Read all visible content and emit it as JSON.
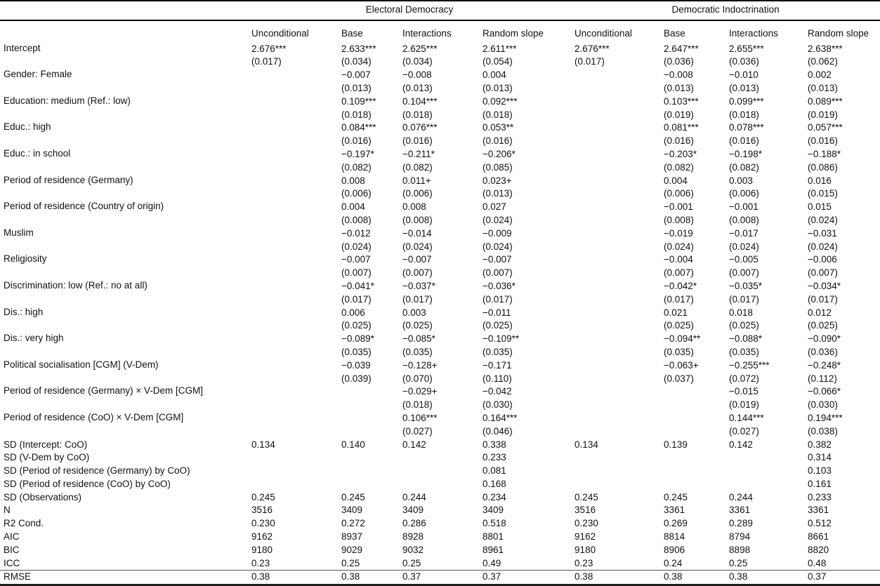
{
  "table": {
    "group_headers": [
      {
        "label": "Electoral Democracy",
        "span": 4
      },
      {
        "label": "Democratic Indoctrination",
        "span": 4
      }
    ],
    "column_headers": [
      "Unconditional",
      "Base",
      "Interactions",
      "Random slope",
      "Unconditional",
      "Base",
      "Interactions",
      "Random slope"
    ],
    "coefficient_rows": [
      {
        "label": "Intercept",
        "est": [
          "2.676***",
          "2.633***",
          "2.625***",
          "2.611***",
          "2.676***",
          "2.647***",
          "2.655***",
          "2.638***"
        ],
        "se": [
          "(0.017)",
          "(0.034)",
          "(0.034)",
          "(0.054)",
          "(0.017)",
          "(0.036)",
          "(0.036)",
          "(0.062)"
        ]
      },
      {
        "label": "Gender: Female",
        "est": [
          "",
          "−0.007",
          "−0.008",
          "0.004",
          "",
          "−0.008",
          "−0.010",
          "0.002"
        ],
        "se": [
          "",
          "(0.013)",
          "(0.013)",
          "(0.013)",
          "",
          "(0.013)",
          "(0.013)",
          "(0.013)"
        ]
      },
      {
        "label": "Education: medium (Ref.: low)",
        "est": [
          "",
          "0.109***",
          "0.104***",
          "0.092***",
          "",
          "0.103***",
          "0.099***",
          "0.089***"
        ],
        "se": [
          "",
          "(0.018)",
          "(0.018)",
          "(0.018)",
          "",
          "(0.019)",
          "(0.018)",
          "(0.019)"
        ]
      },
      {
        "label": "Educ.: high",
        "est": [
          "",
          "0.084***",
          "0.076***",
          "0.053**",
          "",
          "0.081***",
          "0.078***",
          "0.057***"
        ],
        "se": [
          "",
          "(0.016)",
          "(0.016)",
          "(0.016)",
          "",
          "(0.016)",
          "(0.016)",
          "(0.016)"
        ]
      },
      {
        "label": "Educ.: in school",
        "est": [
          "",
          "−0.197*",
          "−0.211*",
          "−0.206*",
          "",
          "−0.203*",
          "−0.198*",
          "−0.188*"
        ],
        "se": [
          "",
          "(0.082)",
          "(0.082)",
          "(0.085)",
          "",
          "(0.082)",
          "(0.082)",
          "(0.086)"
        ]
      },
      {
        "label": "Period of residence (Germany)",
        "est": [
          "",
          "0.008",
          "0.011+",
          "0.023+",
          "",
          "0.004",
          "0.003",
          "0.016"
        ],
        "se": [
          "",
          "(0.006)",
          "(0.006)",
          "(0.013)",
          "",
          "(0.006)",
          "(0.006)",
          "(0.015)"
        ]
      },
      {
        "label": "Period of residence (Country of origin)",
        "est": [
          "",
          "0.004",
          "0.008",
          "0.027",
          "",
          "−0.001",
          "−0.001",
          "0.015"
        ],
        "se": [
          "",
          "(0.008)",
          "(0.008)",
          "(0.024)",
          "",
          "(0.008)",
          "(0.008)",
          "(0.024)"
        ]
      },
      {
        "label": "Muslim",
        "est": [
          "",
          "−0.012",
          "−0.014",
          "−0.009",
          "",
          "−0.019",
          "−0.017",
          "−0.031"
        ],
        "se": [
          "",
          "(0.024)",
          "(0.024)",
          "(0.024)",
          "",
          "(0.024)",
          "(0.024)",
          "(0.024)"
        ]
      },
      {
        "label": "Religiosity",
        "est": [
          "",
          "−0.007",
          "−0.007",
          "−0.007",
          "",
          "−0.004",
          "−0.005",
          "−0.006"
        ],
        "se": [
          "",
          "(0.007)",
          "(0.007)",
          "(0.007)",
          "",
          "(0.007)",
          "(0.007)",
          "(0.007)"
        ]
      },
      {
        "label": "Discrimination: low (Ref.: no at all)",
        "est": [
          "",
          "−0.041*",
          "−0.037*",
          "−0.036*",
          "",
          "−0.042*",
          "−0.035*",
          "−0.034*"
        ],
        "se": [
          "",
          "(0.017)",
          "(0.017)",
          "(0.017)",
          "",
          "(0.017)",
          "(0.017)",
          "(0.017)"
        ]
      },
      {
        "label": "Dis.: high",
        "est": [
          "",
          "0.006",
          "0.003",
          "−0.011",
          "",
          "0.021",
          "0.018",
          "0.012"
        ],
        "se": [
          "",
          "(0.025)",
          "(0.025)",
          "(0.025)",
          "",
          "(0.025)",
          "(0.025)",
          "(0.025)"
        ]
      },
      {
        "label": "Dis.: very high",
        "est": [
          "",
          "−0.089*",
          "−0.085*",
          "−0.109**",
          "",
          "−0.094**",
          "−0.088*",
          "−0.090*"
        ],
        "se": [
          "",
          "(0.035)",
          "(0.035)",
          "(0.035)",
          "",
          "(0.035)",
          "(0.035)",
          "(0.036)"
        ]
      },
      {
        "label": "Political socialisation [CGM] (V-Dem)",
        "est": [
          "",
          "−0.039",
          "−0.128+",
          "−0.171",
          "",
          "−0.063+",
          "−0.255***",
          "−0.248*"
        ],
        "se": [
          "",
          "(0.039)",
          "(0.070)",
          "(0.110)",
          "",
          "(0.037)",
          "(0.072)",
          "(0.112)"
        ]
      },
      {
        "label": "Period of residence (Germany) × V-Dem [CGM]",
        "est": [
          "",
          "",
          "−0.029+",
          "−0.042",
          "",
          "",
          "−0.015",
          "−0.066*"
        ],
        "se": [
          "",
          "",
          "(0.018)",
          "(0.030)",
          "",
          "",
          "(0.019)",
          "(0.030)"
        ]
      },
      {
        "label": "Period of residence (CoO) × V-Dem [CGM]",
        "est": [
          "",
          "",
          "0.106***",
          "0.164***",
          "",
          "",
          "0.144***",
          "0.194***"
        ],
        "se": [
          "",
          "",
          "(0.027)",
          "(0.046)",
          "",
          "",
          "(0.027)",
          "(0.038)"
        ]
      }
    ],
    "stat_rows": [
      {
        "label": "SD (Intercept: CoO)",
        "values": [
          "0.134",
          "0.140",
          "0.142",
          "0.338",
          "0.134",
          "0.139",
          "0.142",
          "0.382"
        ],
        "rule_top": false
      },
      {
        "label": "SD (V-Dem by CoO)",
        "values": [
          "",
          "",
          "",
          "0.233",
          "",
          "",
          "",
          "0.314"
        ],
        "rule_top": false
      },
      {
        "label": "SD (Period of residence (Germany) by CoO)",
        "values": [
          "",
          "",
          "",
          "0.081",
          "",
          "",
          "",
          "0.103"
        ],
        "rule_top": false
      },
      {
        "label": "SD (Period of residence (CoO) by CoO)",
        "values": [
          "",
          "",
          "",
          "0.168",
          "",
          "",
          "",
          "0.161"
        ],
        "rule_top": false
      },
      {
        "label": "SD (Observations)",
        "values": [
          "0.245",
          "0.245",
          "0.244",
          "0.234",
          "0.245",
          "0.245",
          "0.244",
          "0.233"
        ],
        "rule_top": false
      },
      {
        "label": "N",
        "values": [
          "3516",
          "3409",
          "3409",
          "3409",
          "3516",
          "3361",
          "3361",
          "3361"
        ],
        "rule_top": false
      },
      {
        "label": "R2 Cond.",
        "values": [
          "0.230",
          "0.272",
          "0.286",
          "0.518",
          "0.230",
          "0.269",
          "0.289",
          "0.512"
        ],
        "rule_top": false
      },
      {
        "label": "AIC",
        "values": [
          "9162",
          "8937",
          "8928",
          "8801",
          "9162",
          "8814",
          "8794",
          "8661"
        ],
        "rule_top": false
      },
      {
        "label": "BIC",
        "values": [
          "9180",
          "9029",
          "9032",
          "8961",
          "9180",
          "8906",
          "8898",
          "8820"
        ],
        "rule_top": false
      },
      {
        "label": "ICC",
        "values": [
          "0.23",
          "0.25",
          "0.25",
          "0.49",
          "0.23",
          "0.24",
          "0.25",
          "0.48"
        ],
        "rule_top": false
      },
      {
        "label": "RMSE",
        "values": [
          "0.38",
          "0.38",
          "0.37",
          "0.37",
          "0.38",
          "0.38",
          "0.38",
          "0.37"
        ],
        "rule_top": true
      }
    ],
    "colors": {
      "text": "#111111",
      "rule": "#000000",
      "background": "#ffffff"
    }
  }
}
